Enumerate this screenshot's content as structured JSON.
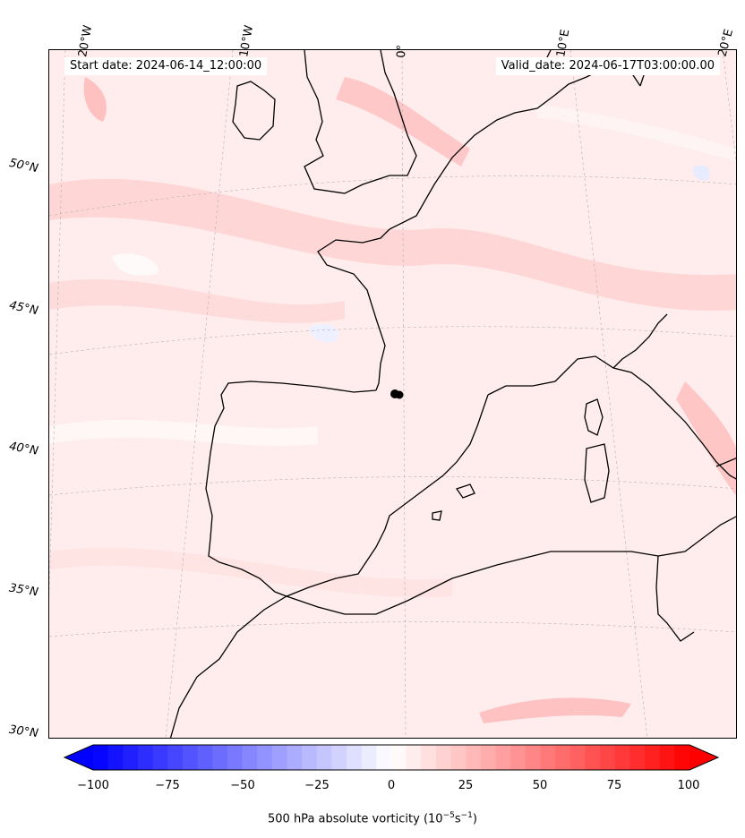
{
  "header": {
    "start_date": "Start date: 2024-06-14_12:00:00",
    "valid_date": "Valid_date: 2024-06-17T03:00:00.00"
  },
  "longitude_labels": [
    "20°W",
    "10°W",
    "0°",
    "10°E",
    "20°E"
  ],
  "latitude_labels": [
    "50°N",
    "45°N",
    "40°N",
    "35°N",
    "30°N"
  ],
  "colorbar": {
    "ticks": [
      "−100",
      "−75",
      "−50",
      "−25",
      "0",
      "25",
      "50",
      "75",
      "100"
    ],
    "label_main": "500 hPa absolute vorticity (10",
    "label_exp1": "−5",
    "label_mid": "s",
    "label_exp2": "−1",
    "label_end": ")",
    "min": -100,
    "max": 100,
    "cmap": "bwr",
    "extend": "both"
  },
  "colors": {
    "coastline": "#000000",
    "background_field": "#fff0f0",
    "positive": "#ff0000",
    "negative": "#0000ff",
    "marker": "#000000"
  }
}
